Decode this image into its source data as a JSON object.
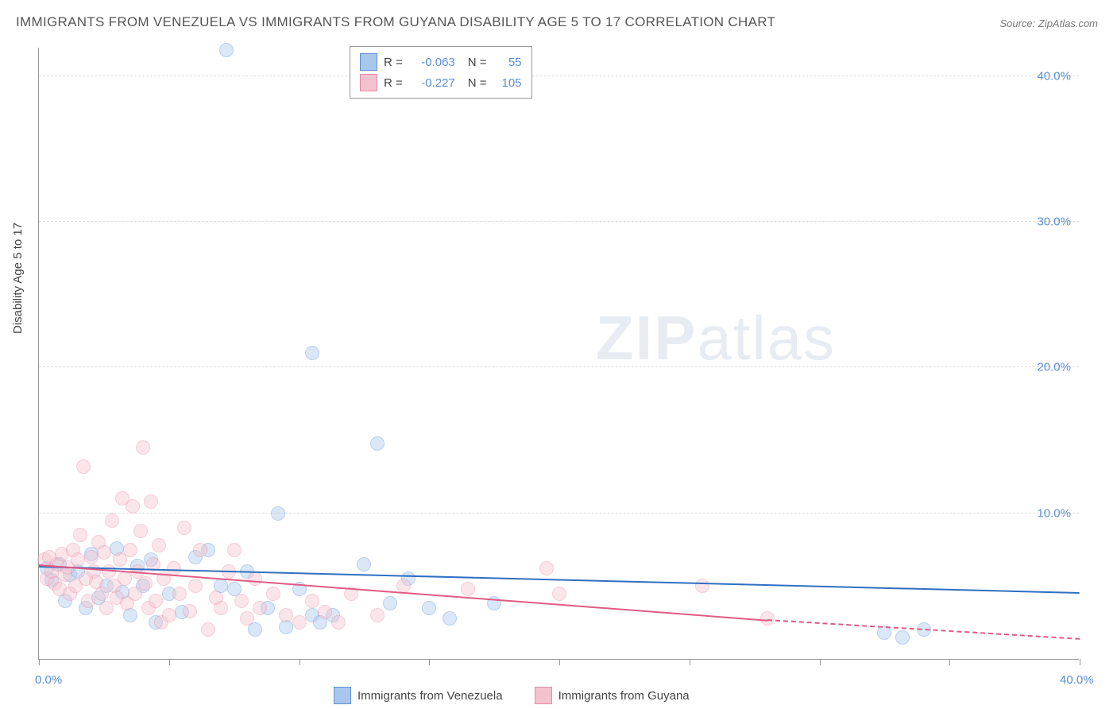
{
  "title": "IMMIGRANTS FROM VENEZUELA VS IMMIGRANTS FROM GUYANA DISABILITY AGE 5 TO 17 CORRELATION CHART",
  "source": "Source: ZipAtlas.com",
  "yaxis_label": "Disability Age 5 to 17",
  "watermark": {
    "part1": "ZIP",
    "part2": "atlas"
  },
  "chart": {
    "type": "scatter",
    "background_color": "#ffffff",
    "grid_color": "#dddddd",
    "axis_color": "#999999",
    "tick_label_color": "#5b8fd6",
    "axis_label_color": "#444444",
    "title_color": "#555555",
    "title_fontsize": 17,
    "tick_fontsize": 15,
    "label_fontsize": 15,
    "xlim": [
      0,
      40
    ],
    "ylim": [
      0,
      42
    ],
    "yticks": [
      10,
      20,
      30,
      40
    ],
    "ytick_labels": [
      "10.0%",
      "20.0%",
      "30.0%",
      "40.0%"
    ],
    "xticks": [
      0,
      5,
      10,
      15,
      20,
      25,
      30,
      35,
      40
    ],
    "xticks_labeled": [
      {
        "pos": 0,
        "label": "0.0%"
      },
      {
        "pos": 40,
        "label": "40.0%"
      }
    ],
    "marker_radius": 9,
    "marker_opacity": 0.42,
    "series": [
      {
        "name": "Immigrants from Venezuela",
        "fill_color": "#a9c7ea",
        "stroke_color": "#5b8fd6",
        "trend_color": "#2f6fc2",
        "r": "-0.063",
        "n": "55",
        "trendline": {
          "x1": 0,
          "y1": 6.3,
          "x2": 40,
          "y2": 4.5
        },
        "points": [
          [
            0.3,
            6.2
          ],
          [
            0.5,
            5.4
          ],
          [
            0.8,
            6.5
          ],
          [
            1.0,
            4.0
          ],
          [
            1.2,
            5.8
          ],
          [
            1.5,
            6.0
          ],
          [
            1.8,
            3.5
          ],
          [
            2.0,
            7.2
          ],
          [
            2.3,
            4.2
          ],
          [
            2.6,
            5.0
          ],
          [
            3.0,
            7.6
          ],
          [
            3.2,
            4.6
          ],
          [
            3.5,
            3.0
          ],
          [
            3.8,
            6.4
          ],
          [
            4.0,
            5.0
          ],
          [
            4.3,
            6.8
          ],
          [
            4.5,
            2.5
          ],
          [
            5.0,
            4.5
          ],
          [
            5.5,
            3.2
          ],
          [
            6.0,
            7.0
          ],
          [
            6.5,
            7.5
          ],
          [
            7.0,
            5.0
          ],
          [
            7.2,
            41.8
          ],
          [
            7.5,
            4.8
          ],
          [
            8.0,
            6.0
          ],
          [
            8.3,
            2.0
          ],
          [
            8.8,
            3.5
          ],
          [
            9.2,
            10.0
          ],
          [
            9.5,
            2.2
          ],
          [
            10.0,
            4.8
          ],
          [
            10.5,
            21.0
          ],
          [
            10.5,
            3.0
          ],
          [
            10.8,
            2.5
          ],
          [
            11.3,
            3.0
          ],
          [
            12.5,
            6.5
          ],
          [
            13.0,
            14.8
          ],
          [
            13.5,
            3.8
          ],
          [
            14.2,
            5.5
          ],
          [
            15.0,
            3.5
          ],
          [
            15.8,
            2.8
          ],
          [
            17.5,
            3.8
          ],
          [
            32.5,
            1.8
          ],
          [
            33.2,
            1.5
          ],
          [
            34.0,
            2.0
          ]
        ]
      },
      {
        "name": "Immigrants from Guyana",
        "fill_color": "#f4c2ce",
        "stroke_color": "#e68aa3",
        "trend_color": "#e15b84",
        "r": "-0.227",
        "n": "105",
        "trendline": {
          "x1": 0,
          "y1": 6.4,
          "x2": 28,
          "y2": 2.6
        },
        "trendline_dashed": {
          "x1": 28,
          "y1": 2.6,
          "x2": 40,
          "y2": 1.3
        },
        "points": [
          [
            0.2,
            6.8
          ],
          [
            0.3,
            5.5
          ],
          [
            0.4,
            7.0
          ],
          [
            0.5,
            6.0
          ],
          [
            0.6,
            5.2
          ],
          [
            0.7,
            6.5
          ],
          [
            0.8,
            4.8
          ],
          [
            0.9,
            7.2
          ],
          [
            1.0,
            5.8
          ],
          [
            1.1,
            6.3
          ],
          [
            1.2,
            4.5
          ],
          [
            1.3,
            7.5
          ],
          [
            1.4,
            5.0
          ],
          [
            1.5,
            6.8
          ],
          [
            1.6,
            8.5
          ],
          [
            1.7,
            13.2
          ],
          [
            1.8,
            5.5
          ],
          [
            1.9,
            4.0
          ],
          [
            2.0,
            7.0
          ],
          [
            2.1,
            6.0
          ],
          [
            2.2,
            5.3
          ],
          [
            2.3,
            8.0
          ],
          [
            2.4,
            4.5
          ],
          [
            2.5,
            7.3
          ],
          [
            2.6,
            3.5
          ],
          [
            2.7,
            6.0
          ],
          [
            2.8,
            9.5
          ],
          [
            2.9,
            5.0
          ],
          [
            3.0,
            4.2
          ],
          [
            3.1,
            6.8
          ],
          [
            3.2,
            11.0
          ],
          [
            3.3,
            5.5
          ],
          [
            3.4,
            3.8
          ],
          [
            3.5,
            7.5
          ],
          [
            3.6,
            10.5
          ],
          [
            3.7,
            4.5
          ],
          [
            3.8,
            6.0
          ],
          [
            3.9,
            8.8
          ],
          [
            4.0,
            14.5
          ],
          [
            4.1,
            5.2
          ],
          [
            4.2,
            3.5
          ],
          [
            4.3,
            10.8
          ],
          [
            4.4,
            6.5
          ],
          [
            4.5,
            4.0
          ],
          [
            4.6,
            7.8
          ],
          [
            4.7,
            2.5
          ],
          [
            4.8,
            5.5
          ],
          [
            5.0,
            3.0
          ],
          [
            5.2,
            6.2
          ],
          [
            5.4,
            4.5
          ],
          [
            5.6,
            9.0
          ],
          [
            5.8,
            3.3
          ],
          [
            6.0,
            5.0
          ],
          [
            6.2,
            7.5
          ],
          [
            6.5,
            2.0
          ],
          [
            6.8,
            4.2
          ],
          [
            7.0,
            3.5
          ],
          [
            7.3,
            6.0
          ],
          [
            7.5,
            7.5
          ],
          [
            7.8,
            4.0
          ],
          [
            8.0,
            2.8
          ],
          [
            8.3,
            5.5
          ],
          [
            8.5,
            3.5
          ],
          [
            9.0,
            4.5
          ],
          [
            9.5,
            3.0
          ],
          [
            10.0,
            2.5
          ],
          [
            10.5,
            4.0
          ],
          [
            11.0,
            3.2
          ],
          [
            11.5,
            2.5
          ],
          [
            12.0,
            4.5
          ],
          [
            13.0,
            3.0
          ],
          [
            14.0,
            5.0
          ],
          [
            16.5,
            4.8
          ],
          [
            19.5,
            6.2
          ],
          [
            20.0,
            4.5
          ],
          [
            25.5,
            5.0
          ],
          [
            28.0,
            2.8
          ]
        ]
      }
    ]
  },
  "legend_bottom": [
    {
      "label": "Immigrants from Venezuela",
      "fill": "#a9c7ea",
      "stroke": "#5b8fd6"
    },
    {
      "label": "Immigrants from Guyana",
      "fill": "#f4c2ce",
      "stroke": "#e68aa3"
    }
  ]
}
